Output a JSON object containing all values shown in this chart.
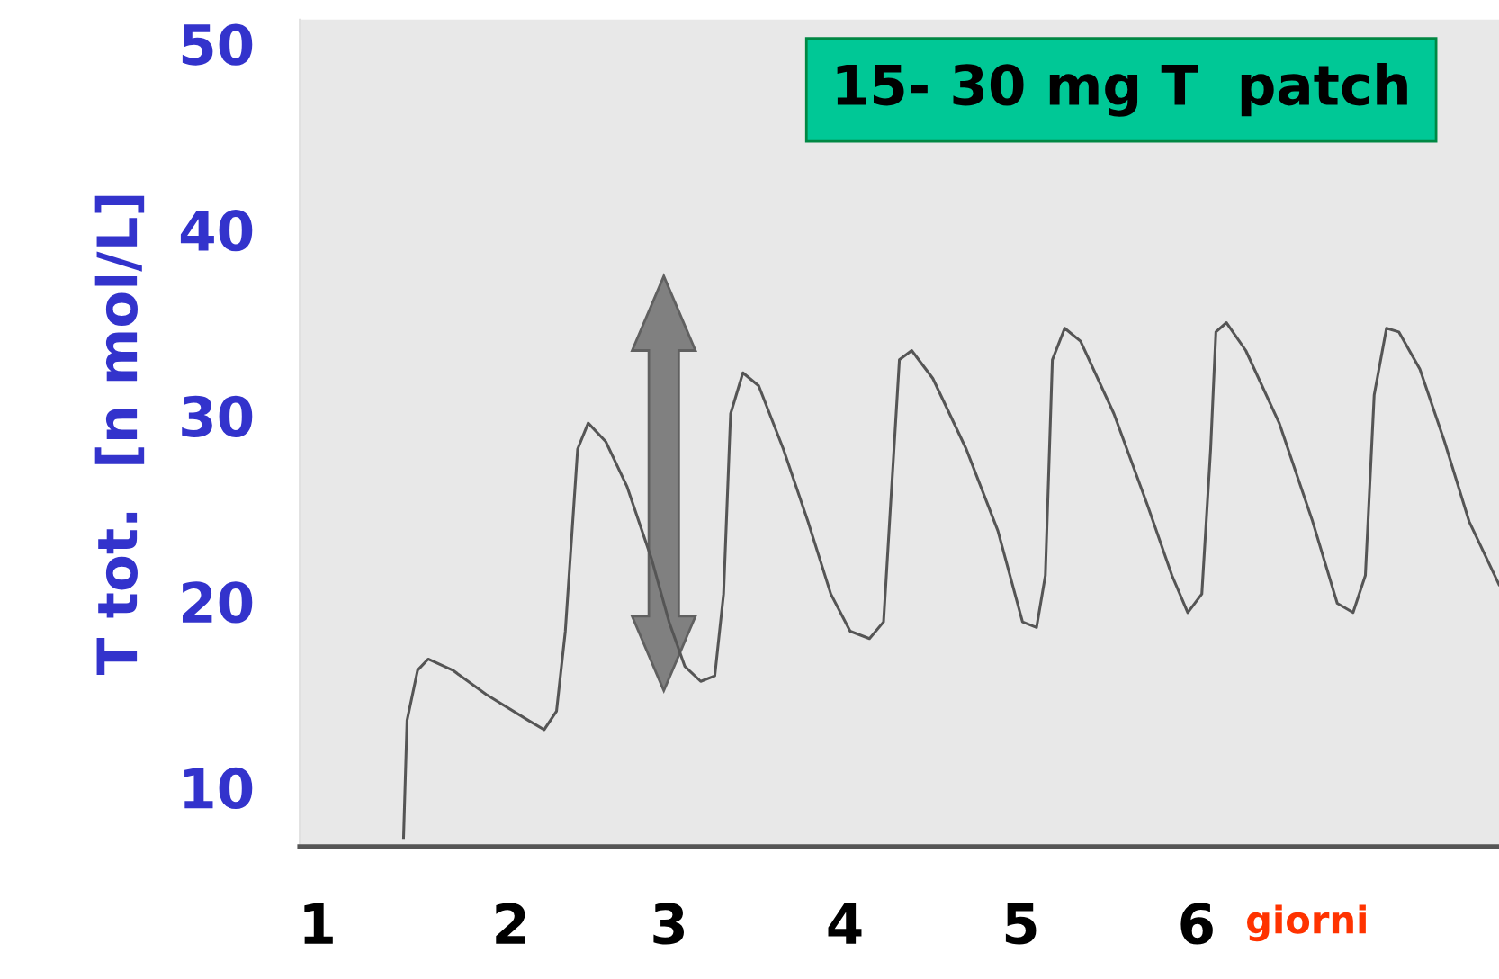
{
  "chart_data": {
    "type": "line",
    "ylabel": "T tot.  [n mol/L]",
    "xlabel": "giorni",
    "annotations": [
      "15- 30 mg T  patch"
    ],
    "x": [
      1.49,
      1.51,
      1.57,
      1.63,
      1.77,
      1.96,
      2.2,
      2.29,
      2.36,
      2.41,
      2.48,
      2.54,
      2.64,
      2.76,
      2.9,
      3.0,
      3.09,
      3.18,
      3.26,
      3.31,
      3.35,
      3.42,
      3.51,
      3.65,
      3.79,
      3.92,
      4.03,
      4.14,
      4.22,
      4.26,
      4.31,
      4.38,
      4.5,
      4.69,
      4.87,
      5.01,
      5.09,
      5.14,
      5.18,
      5.25,
      5.34,
      5.53,
      5.72,
      5.86,
      5.95,
      6.03,
      6.08,
      6.11,
      6.17,
      6.28,
      6.47,
      6.66,
      6.8,
      6.89,
      6.96,
      7.01,
      7.08,
      7.15,
      7.27,
      7.41,
      7.55,
      7.72
    ],
    "series": [
      {
        "color": "#555555",
        "values": [
          7.3,
          13.6,
          16.3,
          16.9,
          16.3,
          15.0,
          13.6,
          13.1,
          14.1,
          18.4,
          28.2,
          29.6,
          28.6,
          26.2,
          22.3,
          18.9,
          16.5,
          15.7,
          16.0,
          20.4,
          30.1,
          32.3,
          31.6,
          28.2,
          24.3,
          20.4,
          18.4,
          18.0,
          18.9,
          25.2,
          33.0,
          33.5,
          32.0,
          28.2,
          23.8,
          18.9,
          18.6,
          21.4,
          33.0,
          34.7,
          34.0,
          30.1,
          25.2,
          21.4,
          19.4,
          20.4,
          28.2,
          34.5,
          35.0,
          33.5,
          29.6,
          24.3,
          19.9,
          19.4,
          21.4,
          31.1,
          34.7,
          34.5,
          32.5,
          28.6,
          24.3,
          20.9
        ]
      }
    ],
    "xlim": [
      0.9,
      7.72
    ],
    "ylim": [
      6.8,
      51.3
    ],
    "xticks": [
      1,
      {
        "value": 2.1,
        "label": "2"
      },
      3,
      4,
      5,
      6
    ],
    "yticks": [
      10,
      20,
      30,
      40,
      50
    ],
    "marker": "none",
    "line_style": "solid"
  }
}
